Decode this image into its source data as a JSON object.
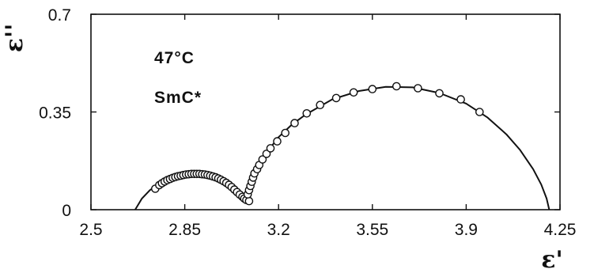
{
  "chart_data": {
    "type": "scatter",
    "xlabel": "ε'",
    "ylabel": "ε''",
    "xlim": [
      2.5,
      4.25
    ],
    "ylim": [
      0,
      0.7
    ],
    "x_ticks": [
      "2.5",
      "2.85",
      "3.2",
      "3.55",
      "3.9",
      "4.25"
    ],
    "y_ticks": [
      "0",
      "0.35",
      "0.7"
    ],
    "grid": false,
    "annotations": [
      "47°C",
      "SmC*"
    ],
    "series": [
      {
        "marker": "open-circle",
        "points": [
          [
            2.74,
            0.075
          ],
          [
            2.755,
            0.088
          ],
          [
            2.765,
            0.095
          ],
          [
            2.775,
            0.101
          ],
          [
            2.785,
            0.106
          ],
          [
            2.795,
            0.11
          ],
          [
            2.805,
            0.114
          ],
          [
            2.815,
            0.117
          ],
          [
            2.825,
            0.12
          ],
          [
            2.835,
            0.122
          ],
          [
            2.845,
            0.124
          ],
          [
            2.855,
            0.126
          ],
          [
            2.865,
            0.127
          ],
          [
            2.875,
            0.128
          ],
          [
            2.885,
            0.128
          ],
          [
            2.895,
            0.128
          ],
          [
            2.905,
            0.128
          ],
          [
            2.915,
            0.127
          ],
          [
            2.925,
            0.126
          ],
          [
            2.935,
            0.124
          ],
          [
            2.945,
            0.122
          ],
          [
            2.955,
            0.119
          ],
          [
            2.965,
            0.116
          ],
          [
            2.975,
            0.112
          ],
          [
            2.985,
            0.107
          ],
          [
            2.995,
            0.102
          ],
          [
            3.005,
            0.096
          ],
          [
            3.015,
            0.089
          ],
          [
            3.025,
            0.081
          ],
          [
            3.035,
            0.072
          ],
          [
            3.045,
            0.063
          ],
          [
            3.055,
            0.054
          ],
          [
            3.065,
            0.046
          ],
          [
            3.072,
            0.04
          ],
          [
            3.08,
            0.035
          ],
          [
            3.09,
            0.031
          ],
          [
            3.085,
            0.055
          ],
          [
            3.09,
            0.07
          ],
          [
            3.095,
            0.085
          ],
          [
            3.1,
            0.1
          ],
          [
            3.105,
            0.115
          ],
          [
            3.11,
            0.13
          ],
          [
            3.12,
            0.145
          ],
          [
            3.128,
            0.16
          ],
          [
            3.14,
            0.18
          ],
          [
            3.155,
            0.2
          ],
          [
            3.17,
            0.22
          ],
          [
            3.195,
            0.245
          ],
          [
            3.225,
            0.275
          ],
          [
            3.26,
            0.31
          ],
          [
            3.305,
            0.345
          ],
          [
            3.355,
            0.375
          ],
          [
            3.415,
            0.4
          ],
          [
            3.48,
            0.42
          ],
          [
            3.55,
            0.432
          ],
          [
            3.64,
            0.442
          ],
          [
            3.72,
            0.435
          ],
          [
            3.8,
            0.417
          ],
          [
            3.88,
            0.395
          ],
          [
            3.95,
            0.35
          ]
        ]
      },
      {
        "marker": "solid-line",
        "points": [
          [
            2.665,
            0.0
          ],
          [
            2.69,
            0.04
          ],
          [
            2.72,
            0.07
          ],
          [
            2.76,
            0.097
          ],
          [
            2.8,
            0.114
          ],
          [
            2.85,
            0.126
          ],
          [
            2.9,
            0.128
          ],
          [
            2.95,
            0.12
          ],
          [
            3.0,
            0.099
          ],
          [
            3.04,
            0.072
          ],
          [
            3.07,
            0.045
          ],
          [
            3.085,
            0.03
          ],
          [
            3.095,
            0.06
          ],
          [
            3.11,
            0.11
          ],
          [
            3.13,
            0.16
          ],
          [
            3.16,
            0.21
          ],
          [
            3.2,
            0.26
          ],
          [
            3.25,
            0.305
          ],
          [
            3.3,
            0.34
          ],
          [
            3.4,
            0.395
          ],
          [
            3.5,
            0.425
          ],
          [
            3.6,
            0.44
          ],
          [
            3.7,
            0.438
          ],
          [
            3.8,
            0.418
          ],
          [
            3.9,
            0.38
          ],
          [
            3.98,
            0.33
          ],
          [
            4.05,
            0.27
          ],
          [
            4.1,
            0.215
          ],
          [
            4.15,
            0.145
          ],
          [
            4.18,
            0.09
          ],
          [
            4.2,
            0.04
          ],
          [
            4.21,
            0.0
          ]
        ]
      }
    ]
  }
}
